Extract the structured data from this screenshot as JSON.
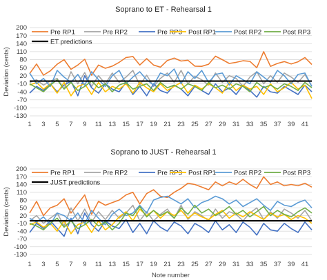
{
  "chart_data": [
    {
      "type": "line",
      "title": "Soprano to ET - Rehearsal 1",
      "xlabel": "",
      "ylabel": "Deviation (cents)",
      "ylim": [
        -130,
        200
      ],
      "yticks": [
        "200",
        "170",
        "140",
        "110",
        "80",
        "50",
        "20",
        "-10",
        "-40",
        "-70",
        "-100",
        "-130"
      ],
      "x": [
        1,
        2,
        3,
        4,
        5,
        6,
        7,
        8,
        9,
        10,
        11,
        12,
        13,
        14,
        15,
        16,
        17,
        18,
        19,
        20,
        21,
        22,
        23,
        24,
        25,
        26,
        27,
        28,
        29,
        30,
        31,
        32,
        33,
        34,
        35,
        36,
        37,
        38,
        39,
        40,
        41,
        42
      ],
      "xtick_labels": [
        "1",
        "3",
        "5",
        "7",
        "9",
        "11",
        "13",
        "15",
        "17",
        "19",
        "21",
        "23",
        "25",
        "27",
        "29",
        "31",
        "33",
        "35",
        "37",
        "39",
        "41"
      ],
      "grid": "horizontal",
      "legend_position": "top-left",
      "reference_line": {
        "name": "ET predictions",
        "value": 0,
        "color": "#000000"
      },
      "series": [
        {
          "name": "Pre RP1",
          "color": "#ED7D31",
          "values": [
            28,
            64,
            22,
            38,
            63,
            80,
            44,
            60,
            82,
            22,
            60,
            48,
            56,
            70,
            88,
            92,
            60,
            84,
            60,
            52,
            77,
            86,
            75,
            78,
            56,
            55,
            63,
            93,
            80,
            66,
            70,
            76,
            74,
            50,
            110,
            55,
            66,
            73,
            64,
            72,
            88,
            62
          ]
        },
        {
          "name": "Pre RP2",
          "color": "#A5A5A5",
          "values": [
            -5,
            5,
            -15,
            0,
            10,
            -30,
            35,
            -10,
            32,
            -20,
            20,
            -10,
            30,
            -5,
            15,
            40,
            -15,
            22,
            -20,
            10,
            30,
            -5,
            40,
            -10,
            18,
            5,
            -15,
            30,
            -5,
            20,
            10,
            -20,
            15,
            35,
            -10,
            20,
            -5,
            30,
            15,
            -5,
            25,
            -20
          ]
        },
        {
          "name": "Pre RP3",
          "color": "#4472C4",
          "values": [
            -45,
            -20,
            -35,
            -10,
            -40,
            -15,
            0,
            -55,
            20,
            -25,
            -45,
            -10,
            -30,
            -40,
            -5,
            -50,
            -20,
            -55,
            -10,
            -35,
            -45,
            -15,
            -30,
            -55,
            -20,
            -35,
            -50,
            -10,
            -40,
            -25,
            -50,
            -15,
            -35,
            -60,
            -20,
            -40,
            -45,
            -20,
            -35,
            -50,
            -15,
            -40
          ]
        },
        {
          "name": "Post RP1",
          "color": "#FFC000",
          "values": [
            -15,
            -5,
            -30,
            -10,
            -45,
            -5,
            -55,
            -20,
            -10,
            -50,
            -5,
            -40,
            -20,
            -30,
            -10,
            -45,
            -5,
            -25,
            -40,
            -10,
            -35,
            -20,
            -5,
            -45,
            -15,
            -30,
            -10,
            -25,
            -45,
            -5,
            -35,
            -15,
            -30,
            -20,
            -50,
            -10,
            -40,
            -25,
            -5,
            -30,
            -15,
            -65
          ]
        },
        {
          "name": "Post RP2",
          "color": "#5B9BD5",
          "values": [
            30,
            -10,
            10,
            -20,
            40,
            15,
            -5,
            25,
            -15,
            35,
            5,
            -20,
            20,
            40,
            -10,
            15,
            35,
            5,
            -15,
            30,
            20,
            45,
            -10,
            35,
            10,
            40,
            -5,
            25,
            30,
            -15,
            20,
            5,
            -10,
            35,
            15,
            -5,
            40,
            20,
            -10,
            25,
            30,
            -20
          ]
        },
        {
          "name": "Post RP3",
          "color": "#70AD47",
          "values": [
            -10,
            -25,
            -40,
            -15,
            5,
            -30,
            -5,
            -35,
            -20,
            0,
            -25,
            -10,
            -40,
            -15,
            -5,
            -30,
            -20,
            -10,
            -35,
            -5,
            -25,
            -15,
            -30,
            -10,
            -20,
            -35,
            -5,
            -25,
            -15,
            -30,
            -10,
            -20,
            -40,
            -5,
            -25,
            -15,
            -30,
            -10,
            -20,
            -35,
            -5,
            -25
          ]
        }
      ]
    },
    {
      "type": "line",
      "title": "Soprano to JUST - Rehearsal 1",
      "xlabel": "Note number",
      "ylabel": "Deviation (cents)",
      "ylim": [
        -130,
        200
      ],
      "yticks": [
        "200",
        "170",
        "140",
        "110",
        "80",
        "50",
        "20",
        "-10",
        "-40",
        "-70",
        "-100",
        "-130"
      ],
      "x": [
        1,
        2,
        3,
        4,
        5,
        6,
        7,
        8,
        9,
        10,
        11,
        12,
        13,
        14,
        15,
        16,
        17,
        18,
        19,
        20,
        21,
        22,
        23,
        24,
        25,
        26,
        27,
        28,
        29,
        30,
        31,
        32,
        33,
        34,
        35,
        36,
        37,
        38,
        39,
        40,
        41,
        42
      ],
      "xtick_labels": [
        "1",
        "3",
        "5",
        "7",
        "9",
        "11",
        "13",
        "15",
        "17",
        "19",
        "21",
        "23",
        "25",
        "27",
        "29",
        "31",
        "33",
        "35",
        "37",
        "39",
        "41"
      ],
      "grid": "horizontal",
      "legend_position": "top-left",
      "reference_line": {
        "name": "JUST predictions",
        "value": 0,
        "color": "#000000"
      },
      "series": [
        {
          "name": "Pre RP1",
          "color": "#ED7D31",
          "values": [
            30,
            75,
            20,
            50,
            60,
            85,
            30,
            65,
            100,
            25,
            75,
            60,
            70,
            80,
            100,
            110,
            65,
            105,
            120,
            95,
            90,
            110,
            125,
            145,
            140,
            130,
            120,
            150,
            135,
            150,
            140,
            160,
            140,
            125,
            170,
            140,
            150,
            135,
            140,
            135,
            145,
            130
          ]
        },
        {
          "name": "Pre RP2",
          "color": "#A5A5A5",
          "values": [
            0,
            20,
            -10,
            10,
            30,
            -20,
            50,
            0,
            45,
            -5,
            35,
            5,
            40,
            10,
            30,
            60,
            0,
            35,
            0,
            25,
            45,
            10,
            60,
            5,
            35,
            20,
            0,
            45,
            10,
            35,
            25,
            0,
            30,
            50,
            5,
            35,
            10,
            45,
            30,
            10,
            40,
            0
          ]
        },
        {
          "name": "Pre RP3",
          "color": "#4472C4",
          "values": [
            -45,
            -10,
            -30,
            0,
            -30,
            -60,
            10,
            -50,
            30,
            -15,
            -40,
            0,
            -20,
            -30,
            5,
            -45,
            -10,
            -50,
            0,
            -25,
            -40,
            -5,
            -20,
            -50,
            -10,
            -25,
            -45,
            0,
            -35,
            -15,
            -45,
            -5,
            -25,
            -55,
            -10,
            -35,
            -40,
            -10,
            -30,
            -45,
            -5,
            -35
          ]
        },
        {
          "name": "Post RP1",
          "color": "#FFC000",
          "values": [
            -15,
            -5,
            -25,
            -10,
            -40,
            0,
            -50,
            -15,
            -5,
            -45,
            0,
            -35,
            -15,
            15,
            35,
            0,
            45,
            20,
            40,
            10,
            35,
            20,
            40,
            10,
            30,
            15,
            5,
            25,
            40,
            10,
            30,
            15,
            35,
            20,
            5,
            30,
            15,
            25,
            5,
            20,
            10,
            -10
          ]
        },
        {
          "name": "Post RP2",
          "color": "#5B9BD5",
          "values": [
            10,
            -5,
            15,
            -15,
            30,
            20,
            0,
            30,
            -10,
            40,
            10,
            -15,
            25,
            45,
            20,
            30,
            60,
            30,
            80,
            90,
            95,
            80,
            65,
            85,
            50,
            70,
            80,
            95,
            85,
            65,
            80,
            55,
            70,
            85,
            60,
            40,
            75,
            60,
            55,
            70,
            80,
            50
          ]
        },
        {
          "name": "Post RP3",
          "color": "#70AD47",
          "values": [
            -10,
            -20,
            -35,
            -10,
            10,
            -25,
            0,
            -30,
            -15,
            5,
            -20,
            -5,
            -35,
            -10,
            30,
            20,
            55,
            15,
            40,
            20,
            35,
            10,
            50,
            25,
            60,
            30,
            45,
            20,
            35,
            55,
            25,
            40,
            15,
            35,
            55,
            20,
            40,
            25,
            15,
            35,
            50,
            30
          ]
        }
      ]
    }
  ]
}
